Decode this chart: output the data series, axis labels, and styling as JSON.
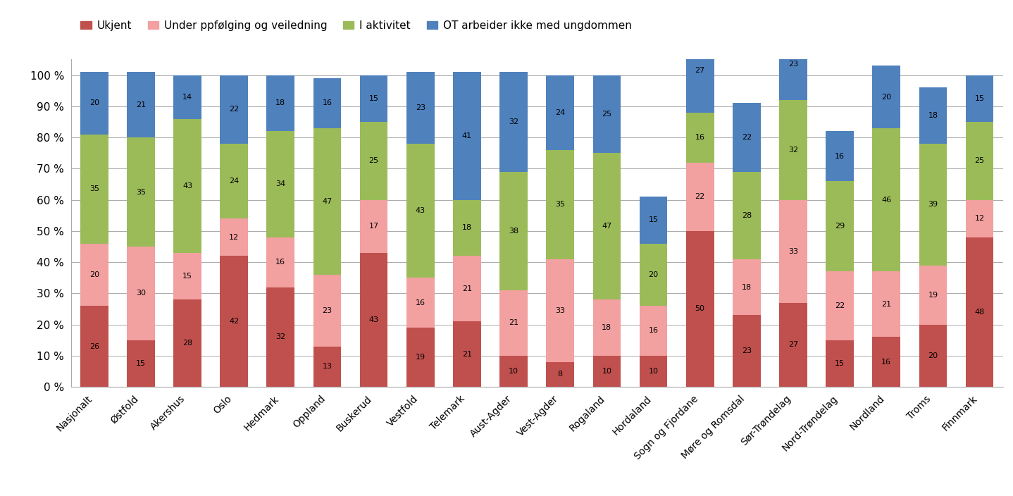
{
  "categories": [
    "Nasjonalt",
    "Østfold",
    "Akershus",
    "Oslo",
    "Hedmark",
    "Oppland",
    "Buskerud",
    "Vestfold",
    "Telemark",
    "Aust-Agder",
    "Vest-Agder",
    "Rogaland",
    "Hordaland",
    "Sogn og Fjordane",
    "Møre og Romsdal",
    "Sør-Trøndelag",
    "Nord-Trøndelag",
    "Nordland",
    "Troms",
    "Finnmark"
  ],
  "ukjent": [
    26,
    15,
    28,
    42,
    32,
    13,
    43,
    19,
    21,
    10,
    8,
    10,
    10,
    50,
    23,
    27,
    15,
    16,
    20,
    48
  ],
  "under_oppfolging": [
    20,
    30,
    15,
    12,
    16,
    23,
    17,
    16,
    21,
    21,
    33,
    18,
    16,
    22,
    18,
    33,
    22,
    21,
    19,
    12
  ],
  "i_aktivitet": [
    35,
    35,
    43,
    24,
    34,
    47,
    25,
    43,
    18,
    38,
    35,
    47,
    20,
    16,
    28,
    32,
    29,
    46,
    39,
    25
  ],
  "ot_arbeider": [
    20,
    21,
    14,
    22,
    18,
    16,
    15,
    23,
    41,
    32,
    24,
    25,
    15,
    27,
    22,
    23,
    16,
    20,
    18,
    15
  ],
  "color_ukjent": "#c0504d",
  "color_under": "#f2a0a0",
  "color_aktivitet": "#9bbb59",
  "color_ot": "#4f81bd",
  "legend_labels": [
    "Ukjent",
    "Under ppfølging og veiledning",
    "I aktivitet",
    "OT arbeider ikke med ungdommen"
  ],
  "background_color": "#ffffff",
  "figsize": [
    14.38,
    7.04
  ],
  "dpi": 100
}
